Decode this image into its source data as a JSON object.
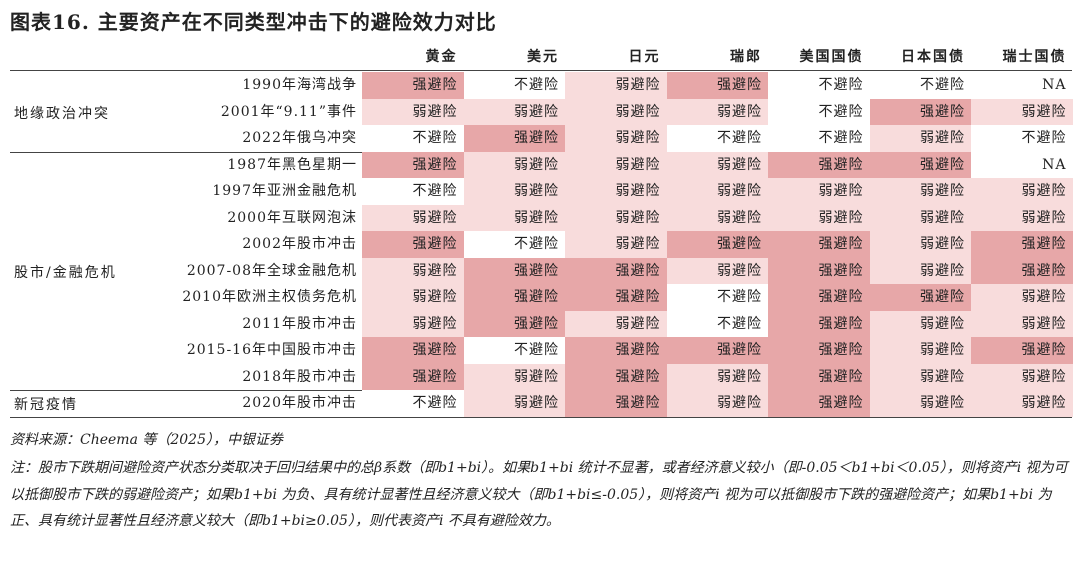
{
  "title": "图表16. 主要资产在不同类型冲击下的避险效力对比",
  "columns": [
    "黄金",
    "美元",
    "日元",
    "瑞郎",
    "美国国债",
    "日本国债",
    "瑞士国债"
  ],
  "colors": {
    "强避险": "#e7a7a8",
    "弱避险": "#f8dcdc",
    "不避险": "#ffffff",
    "NA": "#ffffff"
  },
  "groups": [
    {
      "label": "地缘政治冲突",
      "rows": [
        {
          "event": "1990年海湾战争",
          "values": [
            "强避险",
            "不避险",
            "弱避险",
            "强避险",
            "不避险",
            "不避险",
            "NA"
          ]
        },
        {
          "event": "2001年“9.11”事件",
          "values": [
            "弱避险",
            "弱避险",
            "弱避险",
            "弱避险",
            "不避险",
            "强避险",
            "弱避险"
          ]
        },
        {
          "event": "2022年俄乌冲突",
          "values": [
            "不避险",
            "强避险",
            "弱避险",
            "不避险",
            "不避险",
            "弱避险",
            "不避险"
          ]
        }
      ]
    },
    {
      "label": "股市/金融危机",
      "rows": [
        {
          "event": "1987年黑色星期一",
          "values": [
            "强避险",
            "弱避险",
            "弱避险",
            "弱避险",
            "强避险",
            "强避险",
            "NA"
          ]
        },
        {
          "event": "1997年亚洲金融危机",
          "values": [
            "不避险",
            "弱避险",
            "弱避险",
            "弱避险",
            "弱避险",
            "弱避险",
            "弱避险"
          ]
        },
        {
          "event": "2000年互联网泡沫",
          "values": [
            "弱避险",
            "弱避险",
            "弱避险",
            "弱避险",
            "弱避险",
            "弱避险",
            "弱避险"
          ]
        },
        {
          "event": "2002年股市冲击",
          "values": [
            "强避险",
            "不避险",
            "弱避险",
            "强避险",
            "强避险",
            "弱避险",
            "强避险"
          ]
        },
        {
          "event": "2007-08年全球金融危机",
          "values": [
            "弱避险",
            "强避险",
            "强避险",
            "弱避险",
            "强避险",
            "弱避险",
            "强避险"
          ]
        },
        {
          "event": "2010年欧洲主权债务危机",
          "values": [
            "弱避险",
            "强避险",
            "强避险",
            "不避险",
            "强避险",
            "强避险",
            "弱避险"
          ]
        },
        {
          "event": "2011年股市冲击",
          "values": [
            "弱避险",
            "强避险",
            "弱避险",
            "不避险",
            "强避险",
            "弱避险",
            "弱避险"
          ]
        },
        {
          "event": "2015-16年中国股市冲击",
          "values": [
            "强避险",
            "不避险",
            "强避险",
            "强避险",
            "强避险",
            "弱避险",
            "强避险"
          ]
        },
        {
          "event": "2018年股市冲击",
          "values": [
            "强避险",
            "弱避险",
            "强避险",
            "弱避险",
            "强避险",
            "弱避险",
            "弱避险"
          ]
        }
      ]
    },
    {
      "label": "新冠疫情",
      "rows": [
        {
          "event": "2020年股市冲击",
          "values": [
            "不避险",
            "弱避险",
            "强避险",
            "弱避险",
            "强避险",
            "弱避险",
            "弱避险"
          ]
        }
      ]
    }
  ],
  "source": "资料来源：Cheema 等（2025），中银证券",
  "note": "注：股市下跌期间避险资产状态分类取决于回归结果中的总β系数（即b1+bi）。如果b1+bi 统计不显著，或者经济意义较小（即-0.05＜b1+bi＜0.05），则将资产i 视为可以抵御股市下跌的弱避险资产；如果b1+bi 为负、具有统计显著性且经济意义较大（即b1+bi≤-0.05），则将资产i 视为可以抵御股市下跌的强避险资产；如果b1+bi 为正、具有统计显著性且经济意义较大（即b1+bi≥0.05），则代表资产i 不具有避险效力。"
}
